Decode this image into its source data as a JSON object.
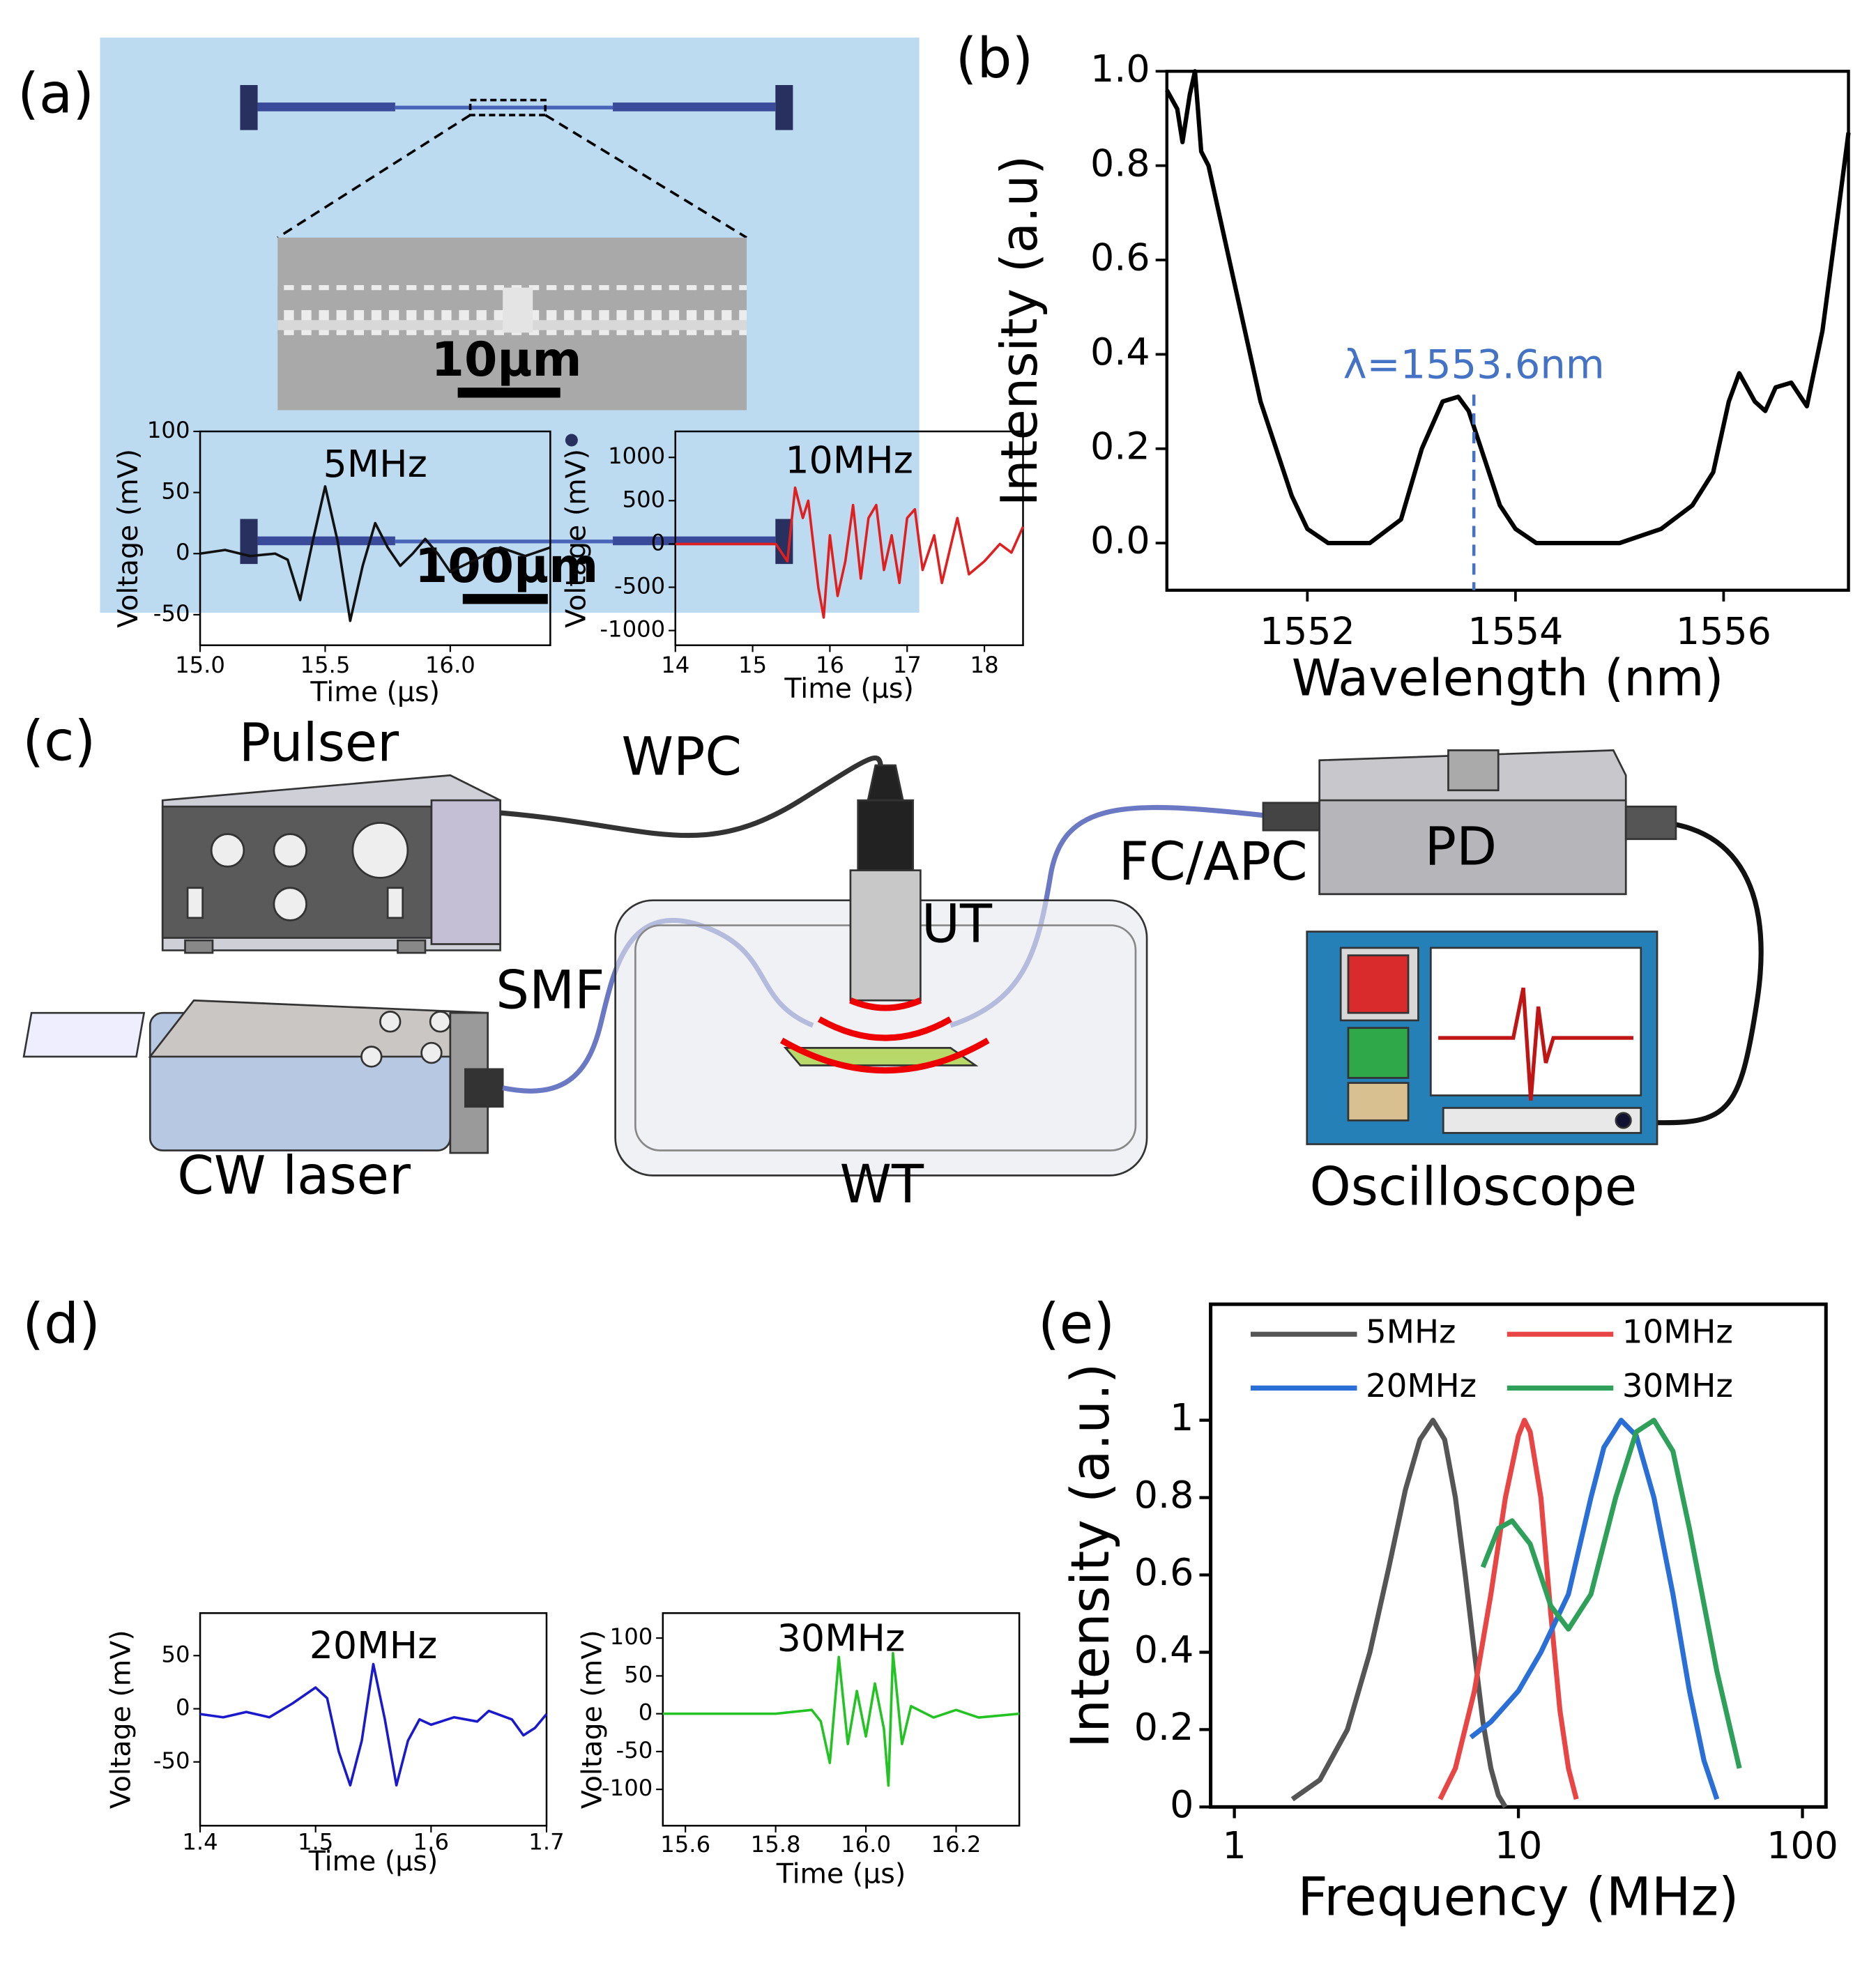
{
  "panel_labels": [
    "(a)",
    "(b)",
    "(c)",
    "(d)",
    "(e)"
  ],
  "panel_a": {
    "scale_bars": [
      "10μm",
      "100μm"
    ]
  },
  "panel_c": {
    "labels": [
      "Pulser",
      "WPC",
      "UT",
      "SMF",
      "CW laser",
      "WT",
      "FC/APC",
      "PD",
      "Oscilloscope"
    ]
  },
  "chart_data": [
    {
      "type": "line",
      "xlabel": "Wavelength (nm)",
      "ylabel": "Intensity (a.u)",
      "color": "#000000",
      "x": [
        1550.65,
        1550.75,
        1550.8,
        1550.87,
        1550.92,
        1550.98,
        1551.05,
        1551.2,
        1551.4,
        1551.55,
        1551.7,
        1551.85,
        1552.0,
        1552.2,
        1552.6,
        1552.9,
        1553.1,
        1553.3,
        1553.45,
        1553.55,
        1553.7,
        1553.85,
        1554.0,
        1554.2,
        1555.0,
        1555.4,
        1555.7,
        1555.9,
        1556.05,
        1556.15,
        1556.3,
        1556.4,
        1556.5,
        1556.65,
        1556.8,
        1556.95,
        1557.1,
        1557.2
      ],
      "values": [
        0.96,
        0.92,
        0.85,
        0.95,
        1.0,
        0.83,
        0.8,
        0.65,
        0.45,
        0.3,
        0.2,
        0.1,
        0.03,
        0.0,
        0.0,
        0.05,
        0.2,
        0.3,
        0.31,
        0.28,
        0.18,
        0.08,
        0.03,
        0.0,
        0.0,
        0.03,
        0.08,
        0.15,
        0.3,
        0.36,
        0.3,
        0.28,
        0.33,
        0.34,
        0.29,
        0.45,
        0.7,
        0.87
      ],
      "xlim": [
        1550.65,
        1557.2
      ],
      "ylim": [
        -0.1,
        1.0
      ],
      "xticks": [
        1552,
        1554,
        1556
      ],
      "yticks": [
        {
          "value": 0,
          "label": "0.0"
        },
        0.2,
        0.4,
        0.6,
        0.8,
        {
          "value": 1,
          "label": "1.0"
        }
      ],
      "annotation": {
        "text": "λ=1553.6nm",
        "x": 1553.6,
        "color": "#4472c4"
      }
    },
    {
      "type": "line",
      "title": "5MHz",
      "xlabel": "Time (μs)",
      "ylabel": "Voltage (mV)",
      "color": "#111111",
      "x": [
        15.0,
        15.1,
        15.2,
        15.3,
        15.35,
        15.4,
        15.45,
        15.5,
        15.55,
        15.6,
        15.65,
        15.7,
        15.75,
        15.8,
        15.85,
        15.9,
        15.95,
        16.0,
        16.1,
        16.2,
        16.3,
        16.4
      ],
      "values": [
        0,
        3,
        -2,
        0,
        -5,
        -38,
        10,
        55,
        10,
        -55,
        -10,
        25,
        5,
        -10,
        0,
        12,
        0,
        -15,
        -5,
        5,
        -2,
        5
      ],
      "xlim": [
        15.0,
        16.4
      ],
      "ylim": [
        -75,
        100
      ],
      "xticks": [
        {
          "value": 15,
          "label": "15.0"
        },
        15.5,
        {
          "value": 16,
          "label": "16.0"
        }
      ],
      "yticks": [
        -50,
        0,
        50,
        100
      ]
    },
    {
      "type": "line",
      "title": "10MHz",
      "xlabel": "Time (μs)",
      "ylabel": "Voltage (mV)",
      "color": "#e02020",
      "x": [
        14,
        15.3,
        15.45,
        15.55,
        15.65,
        15.72,
        15.85,
        15.92,
        16.0,
        16.1,
        16.2,
        16.3,
        16.4,
        16.5,
        16.6,
        16.7,
        16.8,
        16.9,
        17.0,
        17.1,
        17.2,
        17.35,
        17.45,
        17.65,
        17.8,
        18.0,
        18.2,
        18.35,
        18.5
      ],
      "values": [
        0,
        0,
        -200,
        650,
        300,
        500,
        -500,
        -850,
        100,
        -600,
        -200,
        450,
        -400,
        300,
        450,
        -300,
        100,
        -450,
        300,
        400,
        -300,
        100,
        -450,
        300,
        -350,
        -200,
        0,
        -100,
        200
      ],
      "xlim": [
        14,
        18.5
      ],
      "ylim": [
        -1170,
        1300
      ],
      "xticks": [
        14,
        15,
        16,
        17,
        18
      ],
      "yticks": [
        -1000,
        -500,
        0,
        500,
        1000
      ]
    },
    {
      "type": "line",
      "title": "20MHz",
      "xlabel": "Time (μs)",
      "ylabel": "Voltage (mV)",
      "color": "#1a1acc",
      "x": [
        1.4,
        1.42,
        1.44,
        1.46,
        1.48,
        1.5,
        1.51,
        1.52,
        1.53,
        1.54,
        1.55,
        1.56,
        1.57,
        1.58,
        1.59,
        1.6,
        1.62,
        1.64,
        1.65,
        1.67,
        1.68,
        1.69,
        1.7
      ],
      "values": [
        -5,
        -8,
        -3,
        -8,
        5,
        20,
        10,
        -40,
        -72,
        -30,
        42,
        -10,
        -72,
        -30,
        -10,
        -15,
        -8,
        -12,
        -2,
        -10,
        -25,
        -18,
        -5
      ],
      "xlim": [
        1.4,
        1.7
      ],
      "ylim": [
        -110,
        90
      ],
      "xticks": [
        1.4,
        1.5,
        1.6,
        1.7
      ],
      "yticks": [
        -50,
        0,
        50
      ]
    },
    {
      "type": "line",
      "title": "30MHz",
      "xlabel": "Time (μs)",
      "ylabel": "Voltage (mV)",
      "color": "#22c322",
      "x": [
        15.55,
        15.8,
        15.88,
        15.9,
        15.92,
        15.94,
        15.96,
        15.98,
        16.0,
        16.02,
        16.04,
        16.05,
        16.06,
        16.08,
        16.1,
        16.15,
        16.2,
        16.25,
        16.34
      ],
      "values": [
        0,
        0,
        5,
        -10,
        -65,
        75,
        -40,
        30,
        -30,
        40,
        -20,
        -95,
        80,
        -40,
        10,
        -5,
        5,
        -5,
        0
      ],
      "xlim": [
        15.55,
        16.34
      ],
      "ylim": [
        -148,
        133
      ],
      "xticks": [
        15.6,
        15.8,
        {
          "value": 16,
          "label": "16.0"
        },
        16.2
      ],
      "yticks": [
        -100,
        -50,
        0,
        50,
        100
      ]
    },
    {
      "type": "line",
      "xscale": "log",
      "xlabel": "Frequency (MHz)",
      "ylabel": "Intensity (a.u.)",
      "legend": "top",
      "xlim": [
        0.825,
        121
      ],
      "ylim": [
        0,
        1.3
      ],
      "xticks": [
        1,
        10,
        100
      ],
      "yticks": [
        0,
        0.2,
        0.4,
        0.6,
        0.8,
        1
      ],
      "series": [
        {
          "name": "5MHz",
          "color": "#555555",
          "x": [
            1.6,
            2,
            2.5,
            3,
            3.5,
            4,
            4.5,
            5,
            5.5,
            6,
            6.5,
            7,
            7.5,
            8,
            8.5,
            9
          ],
          "values": [
            0.02,
            0.07,
            0.2,
            0.4,
            0.62,
            0.82,
            0.95,
            1.0,
            0.95,
            0.8,
            0.6,
            0.4,
            0.22,
            0.1,
            0.03,
            0
          ]
        },
        {
          "name": "10MHz",
          "color": "#e84545",
          "x": [
            5.3,
            6,
            7,
            8,
            9,
            10,
            10.5,
            11,
            12,
            13,
            14,
            15,
            16
          ],
          "values": [
            0.02,
            0.1,
            0.3,
            0.55,
            0.8,
            0.96,
            1.0,
            0.97,
            0.8,
            0.5,
            0.25,
            0.1,
            0.02
          ]
        },
        {
          "name": "20MHz",
          "color": "#2a6fd6",
          "x": [
            6.8,
            8,
            10,
            12,
            15,
            18,
            20,
            23,
            26,
            30,
            35,
            40,
            45,
            50
          ],
          "values": [
            0.18,
            0.22,
            0.3,
            0.4,
            0.55,
            0.8,
            0.93,
            1.0,
            0.96,
            0.8,
            0.55,
            0.3,
            0.12,
            0.02
          ]
        },
        {
          "name": "30MHz",
          "color": "#2ea05a",
          "x": [
            7.5,
            8.5,
            9.5,
            11,
            13,
            15,
            18,
            22,
            26,
            30,
            35,
            40,
            50,
            60
          ],
          "values": [
            0.62,
            0.72,
            0.74,
            0.68,
            0.52,
            0.46,
            0.55,
            0.8,
            0.97,
            1.0,
            0.92,
            0.72,
            0.35,
            0.1
          ]
        }
      ]
    }
  ]
}
